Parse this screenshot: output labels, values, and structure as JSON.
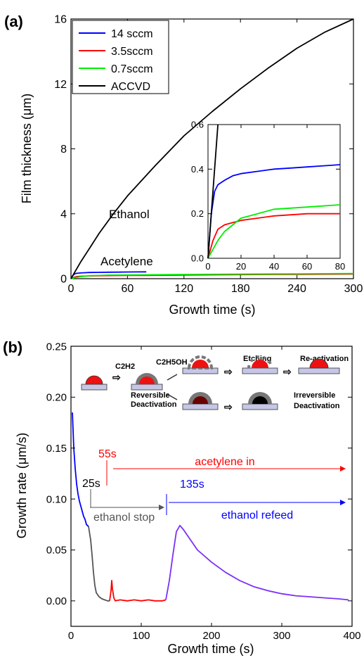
{
  "chart_data": [
    {
      "panel_label": "(a)",
      "type": "line",
      "xlabel": "Growth time (s)",
      "ylabel": "Film thickness (μm)",
      "xlim": [
        0,
        300
      ],
      "ylim": [
        0,
        16
      ],
      "xticks": [
        "0",
        "60",
        "120",
        "180",
        "240",
        "300"
      ],
      "yticks": [
        "0",
        "4",
        "8",
        "12",
        "16"
      ],
      "legend": {
        "placement": "top-left",
        "entries": [
          "14 sccm",
          "3.5sccm",
          "0.7sccm",
          "ACCVD"
        ]
      },
      "annotations": [
        "Ethanol",
        "Acetylene"
      ],
      "series": [
        {
          "name": "14 sccm",
          "color": "#0000ff",
          "x": [
            0,
            2,
            4,
            6,
            10,
            15,
            20,
            30,
            40,
            50,
            60,
            70,
            80
          ],
          "y": [
            0,
            0.2,
            0.3,
            0.33,
            0.35,
            0.37,
            0.38,
            0.39,
            0.4,
            0.405,
            0.41,
            0.415,
            0.42
          ]
        },
        {
          "name": "3.5sccm",
          "color": "#ff0000",
          "x": [
            0,
            3,
            6,
            10,
            15,
            20,
            30,
            40,
            60,
            80,
            120,
            180,
            240,
            300
          ],
          "y": [
            0,
            0.08,
            0.13,
            0.15,
            0.16,
            0.17,
            0.18,
            0.19,
            0.2,
            0.2,
            0.22,
            0.25,
            0.27,
            0.29
          ]
        },
        {
          "name": "0.7sccm",
          "color": "#00ee00",
          "x": [
            0,
            3,
            6,
            10,
            15,
            20,
            30,
            40,
            60,
            80,
            120,
            180,
            240,
            300
          ],
          "y": [
            0,
            0.04,
            0.08,
            0.12,
            0.15,
            0.18,
            0.2,
            0.22,
            0.23,
            0.24,
            0.26,
            0.28,
            0.3,
            0.32
          ]
        },
        {
          "name": "ACCVD",
          "color": "#000000",
          "x": [
            0,
            10,
            20,
            30,
            45,
            60,
            90,
            120,
            150,
            180,
            210,
            240,
            270,
            300
          ],
          "y": [
            0,
            1.0,
            1.9,
            2.8,
            4.0,
            5.1,
            7.0,
            8.8,
            10.3,
            11.7,
            13.0,
            14.2,
            15.2,
            16.0
          ]
        }
      ],
      "inset": {
        "xlim": [
          0,
          80
        ],
        "ylim": [
          0,
          0.6
        ],
        "xticks": [
          "0",
          "20",
          "40",
          "60",
          "80"
        ],
        "yticks": [
          "0.0",
          "0.2",
          "0.4",
          "0.6"
        ]
      }
    },
    {
      "panel_label": "(b)",
      "type": "line",
      "xlabel": "Growth time (s)",
      "ylabel": "Growth rate (μm/s)",
      "xlim": [
        0,
        400
      ],
      "ylim": [
        -0.025,
        0.25
      ],
      "xticks": [
        "0",
        "100",
        "200",
        "300",
        "400"
      ],
      "yticks": [
        "0.00",
        "0.05",
        "0.10",
        "0.15",
        "0.20",
        "0.25"
      ],
      "series": [
        {
          "name": "",
          "color": "#0000ff",
          "x": [
            2,
            4,
            6,
            8,
            10,
            12,
            14,
            16,
            18,
            20,
            22,
            25
          ],
          "y": [
            0.185,
            0.15,
            0.13,
            0.115,
            0.105,
            0.098,
            0.093,
            0.088,
            0.083,
            0.08,
            0.075,
            0.073
          ]
        },
        {
          "name": "",
          "color": "#555555",
          "x": [
            25,
            28,
            30,
            32,
            34,
            36,
            40,
            44,
            48,
            52,
            55
          ],
          "y": [
            0.073,
            0.06,
            0.045,
            0.028,
            0.015,
            0.008,
            0.004,
            0.002,
            0.001,
            0.0,
            0.0
          ]
        },
        {
          "name": "",
          "color": "#ff0000",
          "x": [
            55,
            57,
            58,
            59,
            61,
            63,
            70,
            80,
            90,
            100,
            110,
            120,
            130,
            135
          ],
          "y": [
            0.0,
            0.01,
            0.02,
            0.012,
            0.003,
            0.0,
            0.001,
            0.0,
            0.001,
            0.0,
            0.001,
            0.0,
            0.0,
            0.001
          ]
        },
        {
          "name": "",
          "color": "#7b2ff7",
          "x": [
            135,
            140,
            145,
            150,
            155,
            160,
            170,
            180,
            200,
            220,
            240,
            260,
            280,
            300,
            320,
            340,
            360,
            380,
            395
          ],
          "y": [
            0.001,
            0.02,
            0.045,
            0.068,
            0.074,
            0.07,
            0.06,
            0.05,
            0.038,
            0.028,
            0.02,
            0.014,
            0.01,
            0.007,
            0.005,
            0.004,
            0.003,
            0.002,
            0.001
          ]
        }
      ],
      "annotations": [
        {
          "text": "55s",
          "color": "#ff0000"
        },
        {
          "text": "acetylene in",
          "color": "#ff0000"
        },
        {
          "text": "25s",
          "color": "#000000"
        },
        {
          "text": "ethanol stop",
          "color": "#555555"
        },
        {
          "text": "135s",
          "color": "#0000ff"
        },
        {
          "text": "ethanol refeed",
          "color": "#0000ff"
        }
      ],
      "schematic": {
        "c2h2": "C2H2",
        "c2h5oh": "C2H5OH",
        "etching": "Etching",
        "reactivation": "Re-activation",
        "reversible_1": "Reversible",
        "reversible_2": "Deactivation",
        "irreversible_1": "Irreversible",
        "irreversible_2": "Deactivation"
      }
    }
  ]
}
